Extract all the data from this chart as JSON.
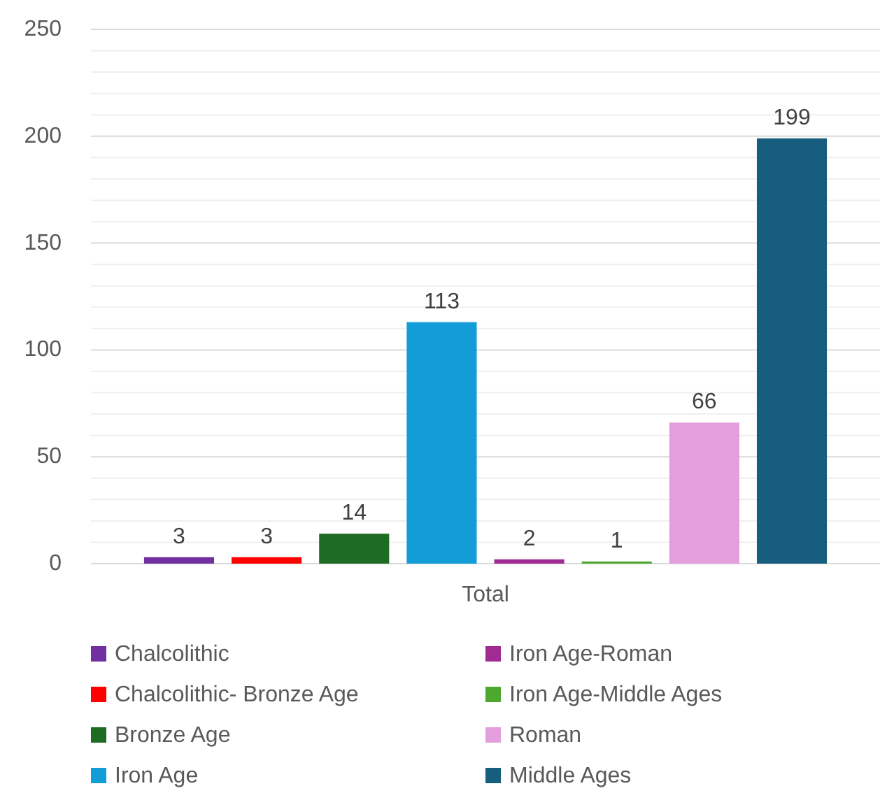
{
  "chart_data": {
    "type": "bar",
    "categories": [
      "Total"
    ],
    "series": [
      {
        "name": "Chalcolithic",
        "color": "#7030a0",
        "values": [
          3
        ]
      },
      {
        "name": "Chalcolithic- Bronze Age",
        "color": "#ff0000",
        "values": [
          3
        ]
      },
      {
        "name": "Bronze Age",
        "color": "#1e6b23",
        "values": [
          14
        ]
      },
      {
        "name": "Iron Age",
        "color": "#129dd8",
        "values": [
          113
        ]
      },
      {
        "name": "Iron Age-Roman",
        "color": "#a02b93",
        "values": [
          2
        ]
      },
      {
        "name": "Iron Age-Middle Ages",
        "color": "#4ea72e",
        "values": [
          1
        ]
      },
      {
        "name": "Roman",
        "color": "#e49edd",
        "values": [
          66
        ]
      },
      {
        "name": "Middle Ages",
        "color": "#165d7e",
        "values": [
          199
        ]
      }
    ],
    "ylim": [
      0,
      250
    ],
    "yticks": [
      0,
      {
        "value": 10,
        "label": null
      },
      {
        "value": 20,
        "label": null
      },
      {
        "value": 30,
        "label": null
      },
      {
        "value": 40,
        "label": null
      },
      50,
      {
        "value": 60,
        "label": null
      },
      {
        "value": 70,
        "label": null
      },
      {
        "value": 80,
        "label": null
      },
      {
        "value": 90,
        "label": null
      },
      100,
      {
        "value": 110,
        "label": null
      },
      {
        "value": 120,
        "label": null
      },
      {
        "value": 130,
        "label": null
      },
      {
        "value": 140,
        "label": null
      },
      150,
      {
        "value": 160,
        "label": null
      },
      {
        "value": 170,
        "label": null
      },
      {
        "value": 180,
        "label": null
      },
      {
        "value": 190,
        "label": null
      },
      200,
      {
        "value": 210,
        "label": null
      },
      {
        "value": 220,
        "label": null
      },
      {
        "value": 230,
        "label": null
      },
      {
        "value": 240,
        "label": null
      },
      250
    ],
    "grid": "y",
    "data_labels": true,
    "legend": "bottom"
  }
}
